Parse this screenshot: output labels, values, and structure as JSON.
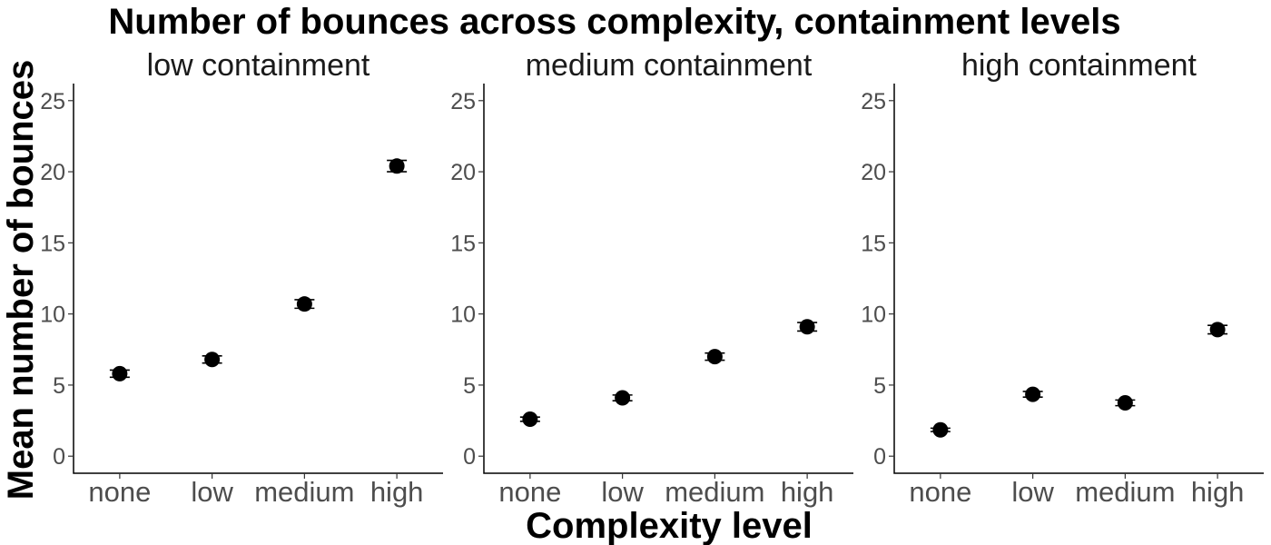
{
  "chart_data": {
    "type": "scatter",
    "title": "Number of bounces across complexity, containment levels",
    "xlabel": "Complexity level",
    "ylabel": "Mean number of bounces",
    "categories": [
      "none",
      "low",
      "medium",
      "high"
    ],
    "ylim": [
      -1.2,
      26.2
    ],
    "yticks": [
      0,
      5,
      10,
      15,
      20,
      25
    ],
    "grid": false,
    "legend": "none",
    "panels": [
      {
        "name": "low containment",
        "values": [
          5.8,
          6.8,
          10.7,
          20.4
        ],
        "err": [
          0.25,
          0.25,
          0.3,
          0.4
        ]
      },
      {
        "name": "medium containment",
        "values": [
          2.6,
          4.1,
          7.0,
          9.1
        ],
        "err": [
          0.15,
          0.2,
          0.25,
          0.3
        ]
      },
      {
        "name": "high containment",
        "values": [
          1.85,
          4.35,
          3.75,
          8.9
        ],
        "err": [
          0.12,
          0.2,
          0.2,
          0.3
        ]
      }
    ]
  }
}
